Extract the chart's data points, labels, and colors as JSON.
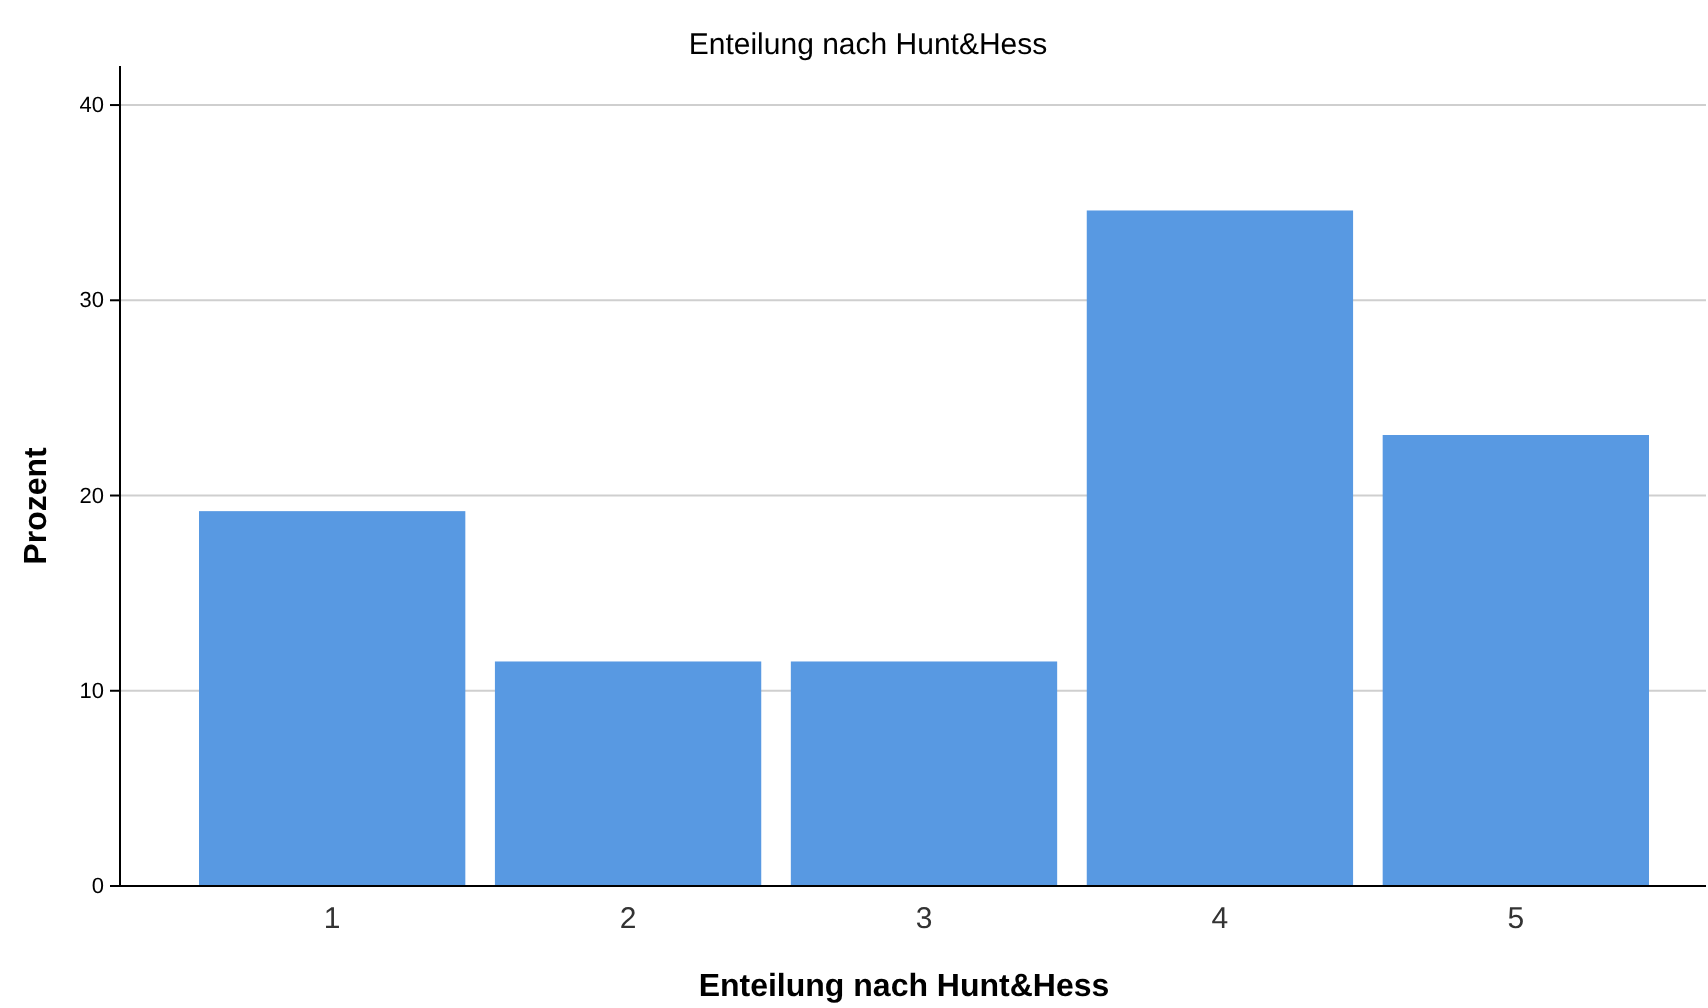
{
  "chart_data": {
    "type": "bar",
    "title": "Enteilung nach Hunt&Hess",
    "xlabel": "Enteilung nach Hunt&Hess",
    "ylabel": "Prozent",
    "categories": [
      "1",
      "2",
      "3",
      "4",
      "5"
    ],
    "values": [
      19.2,
      11.5,
      11.5,
      34.6,
      23.1
    ],
    "color": "#5899e2",
    "ylim": [
      0,
      42
    ],
    "yticks": [
      0,
      10,
      20,
      30,
      40
    ],
    "grid": "y"
  }
}
